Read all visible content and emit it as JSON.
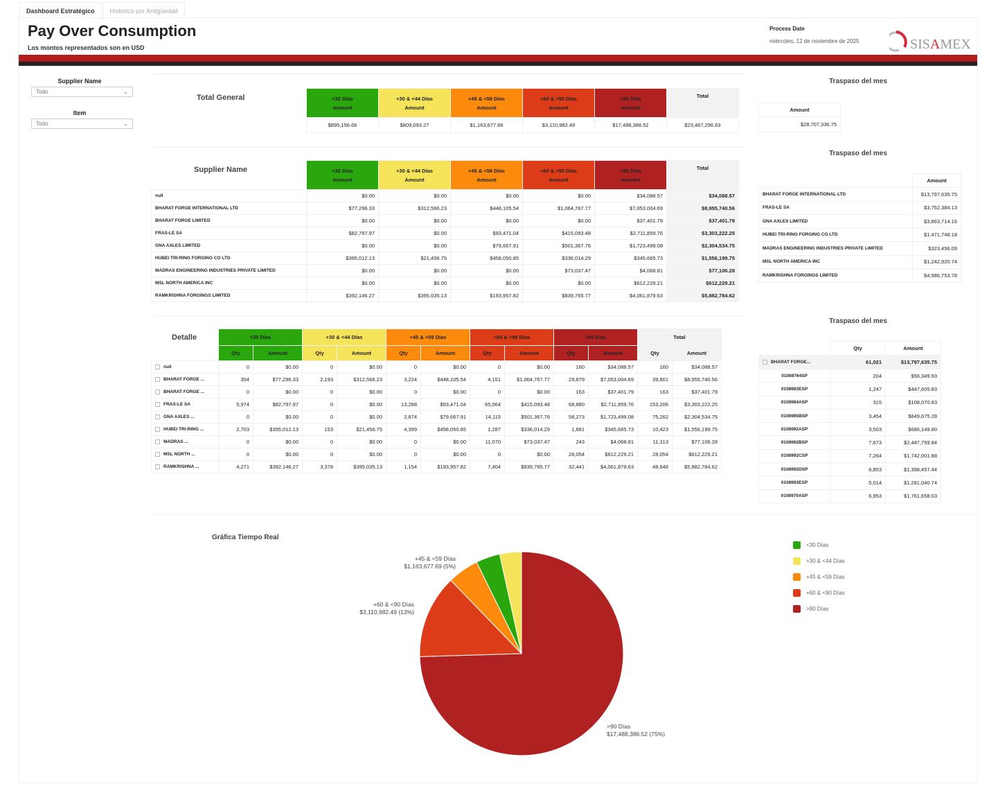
{
  "tabs": [
    {
      "label": "Dashboard Estratégico",
      "active": true
    },
    {
      "label": "Historico por Antigüedad",
      "active": false
    }
  ],
  "header": {
    "title": "Pay Over Consumption",
    "subtitle": "Los montos representados son en USD",
    "process_date_label": "Process Date",
    "process_date_value": "miércoles, 12 de noviembre de 2025",
    "logo_text": "SISAMEX"
  },
  "filters": [
    {
      "label": "Supplier Name",
      "value": "Todo"
    },
    {
      "label": "Item",
      "value": "Todo"
    }
  ],
  "buckets": [
    "<30 Días",
    "+30 & <44 Días",
    "+45 & <59 Días",
    "+60 & <90 Días",
    ">90 Días"
  ],
  "colors": {
    "lt30": "#2aa70d",
    "b30_44": "#f5e35a",
    "b45_59": "#fb8a0d",
    "b60_90": "#dc3d18",
    "gt90": "#b02222",
    "brand_red": "#b51d1d"
  },
  "labels": {
    "amount": "Amount",
    "qty": "Qty",
    "total": "Total"
  },
  "total_general": {
    "title": "Total General",
    "values": [
      "$895,156.66",
      "$809,093.27",
      "$1,163,677.69",
      "$3,110,982.49",
      "$17,488,386.52"
    ],
    "total": "$23,467,296.63"
  },
  "supplier_table": {
    "title": "Supplier Name",
    "rows": [
      {
        "name": "null",
        "values": [
          "$0.00",
          "$0.00",
          "$0.00",
          "$0.00",
          "$34,088.57"
        ],
        "total": "$34,088.57"
      },
      {
        "name": "BHARAT FORGE INTERNATIONAL LTD",
        "values": [
          "$77,296.33",
          "$312,566.23",
          "$448,105.54",
          "$1,064,767.77",
          "$7,053,004.69"
        ],
        "total": "$8,955,740.56"
      },
      {
        "name": "BHARAT FORGE LIMITED",
        "values": [
          "$0.00",
          "$0.00",
          "$0.00",
          "$0.00",
          "$37,401.79"
        ],
        "total": "$37,401.79"
      },
      {
        "name": "FRAS-LE SA",
        "values": [
          "$82,797.97",
          "$0.00",
          "$93,471.04",
          "$415,093.48",
          "$2,711,859.76"
        ],
        "total": "$3,303,222.25"
      },
      {
        "name": "GNA AXLES LIMITED",
        "values": [
          "$0.00",
          "$0.00",
          "$79,667.91",
          "$501,367.76",
          "$1,723,499.08"
        ],
        "total": "$2,304,534.75"
      },
      {
        "name": "HUBEI TRI-RING FORGING CO LTD",
        "values": [
          "$395,012.13",
          "$21,456.75",
          "$458,050.85",
          "$336,014.29",
          "$345,665.73"
        ],
        "total": "$1,556,199.75"
      },
      {
        "name": "MADRAS ENGINEERING INDUSTRIES PRIVATE LIMITED",
        "values": [
          "$0.00",
          "$0.00",
          "$0.00",
          "$73,037.47",
          "$4,068.81"
        ],
        "total": "$77,106.28"
      },
      {
        "name": "MSL NORTH AMERICA INC",
        "values": [
          "$0.00",
          "$0.00",
          "$0.00",
          "$0.00",
          "$612,229.21"
        ],
        "total": "$612,229.21"
      },
      {
        "name": "RAMKRISHNA FORGINGS LIMITED",
        "values": [
          "$392,146.27",
          "$395,035.13",
          "$193,957.82",
          "$839,765.77",
          "$4,061,879.63"
        ],
        "total": "$5,882,784.62"
      }
    ]
  },
  "detail_table": {
    "title": "Detalle",
    "rows": [
      {
        "name": "null",
        "cells": [
          "0",
          "$0.00",
          "0",
          "$0.00",
          "0",
          "$0.00",
          "0",
          "$0.00",
          "160",
          "$34,088.57"
        ],
        "total_qty": "160",
        "total_amount": "$34,088.57"
      },
      {
        "name": "BHARAT FORGE ...",
        "cells": [
          "354",
          "$77,296.33",
          "2,193",
          "$312,566.23",
          "3,224",
          "$448,105.54",
          "4,151",
          "$1,064,767.77",
          "29,879",
          "$7,053,004.69"
        ],
        "total_qty": "39,801",
        "total_amount": "$8,955,740.56"
      },
      {
        "name": "BHARAT FORGE ...",
        "cells": [
          "0",
          "$0.00",
          "0",
          "$0.00",
          "0",
          "$0.00",
          "0",
          "$0.00",
          "163",
          "$37,401.79"
        ],
        "total_qty": "163",
        "total_amount": "$37,401.79"
      },
      {
        "name": "FRAS-LE SA",
        "cells": [
          "5,974",
          "$82,797.97",
          "0",
          "$0.00",
          "13,288",
          "$93,471.04",
          "65,064",
          "$415,093.48",
          "68,880",
          "$2,711,859.76"
        ],
        "total_qty": "153,206",
        "total_amount": "$3,303,222.25"
      },
      {
        "name": "GNA AXLES ...",
        "cells": [
          "0",
          "$0.00",
          "0",
          "$0.00",
          "2,874",
          "$79,667.91",
          "14,115",
          "$501,367.76",
          "58,273",
          "$1,723,499.08"
        ],
        "total_qty": "75,262",
        "total_amount": "$2,304,534.75"
      },
      {
        "name": "HUBEI TRI-RING ...",
        "cells": [
          "2,703",
          "$395,012.13",
          "153",
          "$21,456.75",
          "4,399",
          "$458,050.85",
          "1,287",
          "$336,014.29",
          "1,881",
          "$345,665.73"
        ],
        "total_qty": "10,423",
        "total_amount": "$1,556,199.75"
      },
      {
        "name": "MADRAS ...",
        "cells": [
          "0",
          "$0.00",
          "0",
          "$0.00",
          "0",
          "$0.00",
          "11,070",
          "$73,037.47",
          "243",
          "$4,068.81"
        ],
        "total_qty": "11,313",
        "total_amount": "$77,106.28"
      },
      {
        "name": "MSL NORTH ...",
        "cells": [
          "0",
          "$0.00",
          "0",
          "$0.00",
          "0",
          "$0.00",
          "0",
          "$0.00",
          "28,054",
          "$612,229.21"
        ],
        "total_qty": "28,054",
        "total_amount": "$612,229.21"
      },
      {
        "name": "RAMKRISHNA ...",
        "cells": [
          "4,271",
          "$392,146.27",
          "3,378",
          "$395,035.13",
          "1,154",
          "$193,957.82",
          "7,404",
          "$839,765.77",
          "32,441",
          "$4,061,879.63"
        ],
        "total_qty": "48,648",
        "total_amount": "$5,882,784.62"
      }
    ]
  },
  "traspaso_title": "Traspaso del mes",
  "traspaso_total": {
    "amount": "$28,707,336.75"
  },
  "traspaso_suppliers": [
    {
      "name": "BHARAT FORGE INTERNATIONAL LTD",
      "amount": "$13,797,635.75"
    },
    {
      "name": "FRAS-LE SA",
      "amount": "$3,752,384.13"
    },
    {
      "name": "GNA AXLES LIMITED",
      "amount": "$3,863,714.16"
    },
    {
      "name": "HUBEI TRI-RING FORGING CO LTD",
      "amount": "$1,471,748.18"
    },
    {
      "name": "MADRAS ENGINEERING INDUSTRIES PRIVATE LIMITED",
      "amount": "$323,456.09"
    },
    {
      "name": "MSL NORTH AMERICA INC",
      "amount": "$1,242,920.74"
    },
    {
      "name": "RAMKRISHNA FORGINGS LIMITED",
      "amount": "$4,986,753.78"
    }
  ],
  "traspaso_items": {
    "group": {
      "name": "BHARAT FORGE...",
      "qty": "61,021",
      "amount": "$13,797,635.75"
    },
    "rows": [
      {
        "item": "01089764SP",
        "qty": "204",
        "amount": "$56,349.93"
      },
      {
        "item": "0108983ESP",
        "qty": "1,247",
        "amount": "$447,605.83"
      },
      {
        "item": "0108984ASP",
        "qty": "315",
        "amount": "$108,070.83"
      },
      {
        "item": "0108985BSP",
        "qty": "3,454",
        "amount": "$849,675.28"
      },
      {
        "item": "0108992ASP",
        "qty": "3,503",
        "amount": "$686,149.80"
      },
      {
        "item": "0108992BSP",
        "qty": "7,673",
        "amount": "$2,447,759.84"
      },
      {
        "item": "0108992CSP",
        "qty": "7,264",
        "amount": "$1,742,001.88"
      },
      {
        "item": "0108992DSP",
        "qty": "6,853",
        "amount": "$1,398,457.44"
      },
      {
        "item": "0108993ESP",
        "qty": "5,014",
        "amount": "$1,281,040.74"
      },
      {
        "item": "0108970ASP",
        "qty": "6,953",
        "amount": "$1,761,658.03"
      }
    ]
  },
  "chart_data": {
    "type": "pie",
    "title": "Gráfica Tiempo Real",
    "legend_position": "right",
    "categories": [
      "<30 Días",
      "+30 & <44 Días",
      "+45 & <59 Días",
      "+60 & <90 Días",
      ">90 Días"
    ],
    "values": [
      895156.66,
      809093.27,
      1163677.69,
      3110982.49,
      17488386.52
    ],
    "colors": [
      "#2aa70d",
      "#f5e35a",
      "#fb8a0d",
      "#dc3d18",
      "#b02222"
    ],
    "data_labels": [
      {
        "category": "+45 & <59 Días",
        "text": "$1,163,677.69 (5%)"
      },
      {
        "category": "+60 & <90 Días",
        "text": "$3,110,982.49 (13%)"
      },
      {
        "category": ">90 Días",
        "text": "$17,488,386.52 (75%)"
      }
    ]
  }
}
